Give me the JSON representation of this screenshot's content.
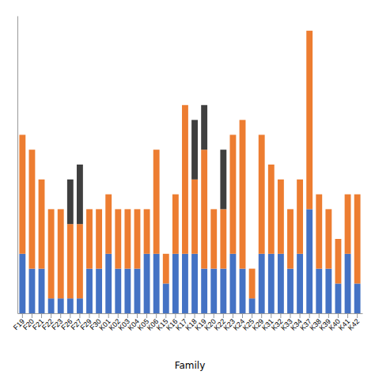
{
  "chart_data": {
    "type": "bar",
    "stacked": true,
    "xlabel": "Family",
    "categories": [
      "F19",
      "F20",
      "F21",
      "F22",
      "F23",
      "F26",
      "F27",
      "F29",
      "F30",
      "K01",
      "K02",
      "K03",
      "K04",
      "K05",
      "K06",
      "K15",
      "K16",
      "K17",
      "K18",
      "K19",
      "K20",
      "K22",
      "K23",
      "K24",
      "K25",
      "K29",
      "K31",
      "K32",
      "K33",
      "K34",
      "K37",
      "K38",
      "K39",
      "K40",
      "K41",
      "K42"
    ],
    "series": [
      {
        "color": "#4472C4",
        "values": [
          4,
          3,
          3,
          1,
          1,
          1,
          1,
          3,
          3,
          4,
          3,
          3,
          3,
          4,
          4,
          2,
          4,
          4,
          4,
          3,
          3,
          3,
          4,
          3,
          1,
          4,
          4,
          4,
          3,
          4,
          7,
          3,
          3,
          2,
          4,
          2
        ]
      },
      {
        "color": "#ED7D31",
        "values": [
          8,
          8,
          6,
          6,
          6,
          5,
          5,
          4,
          4,
          4,
          4,
          4,
          4,
          3,
          7,
          2,
          4,
          10,
          5,
          8,
          4,
          4,
          8,
          10,
          2,
          8,
          6,
          5,
          4,
          5,
          12,
          5,
          4,
          3,
          4,
          6
        ]
      },
      {
        "color": "#3F3F3F",
        "values": [
          0,
          0,
          0,
          0,
          0,
          3,
          4,
          0,
          0,
          0,
          0,
          0,
          0,
          0,
          0,
          0,
          0,
          0,
          4,
          3,
          0,
          4,
          0,
          0,
          0,
          0,
          0,
          0,
          0,
          0,
          0,
          0,
          0,
          0,
          0,
          0
        ]
      }
    ],
    "ylim": [
      0,
      20
    ],
    "grid": false,
    "tick_labels": "x"
  }
}
